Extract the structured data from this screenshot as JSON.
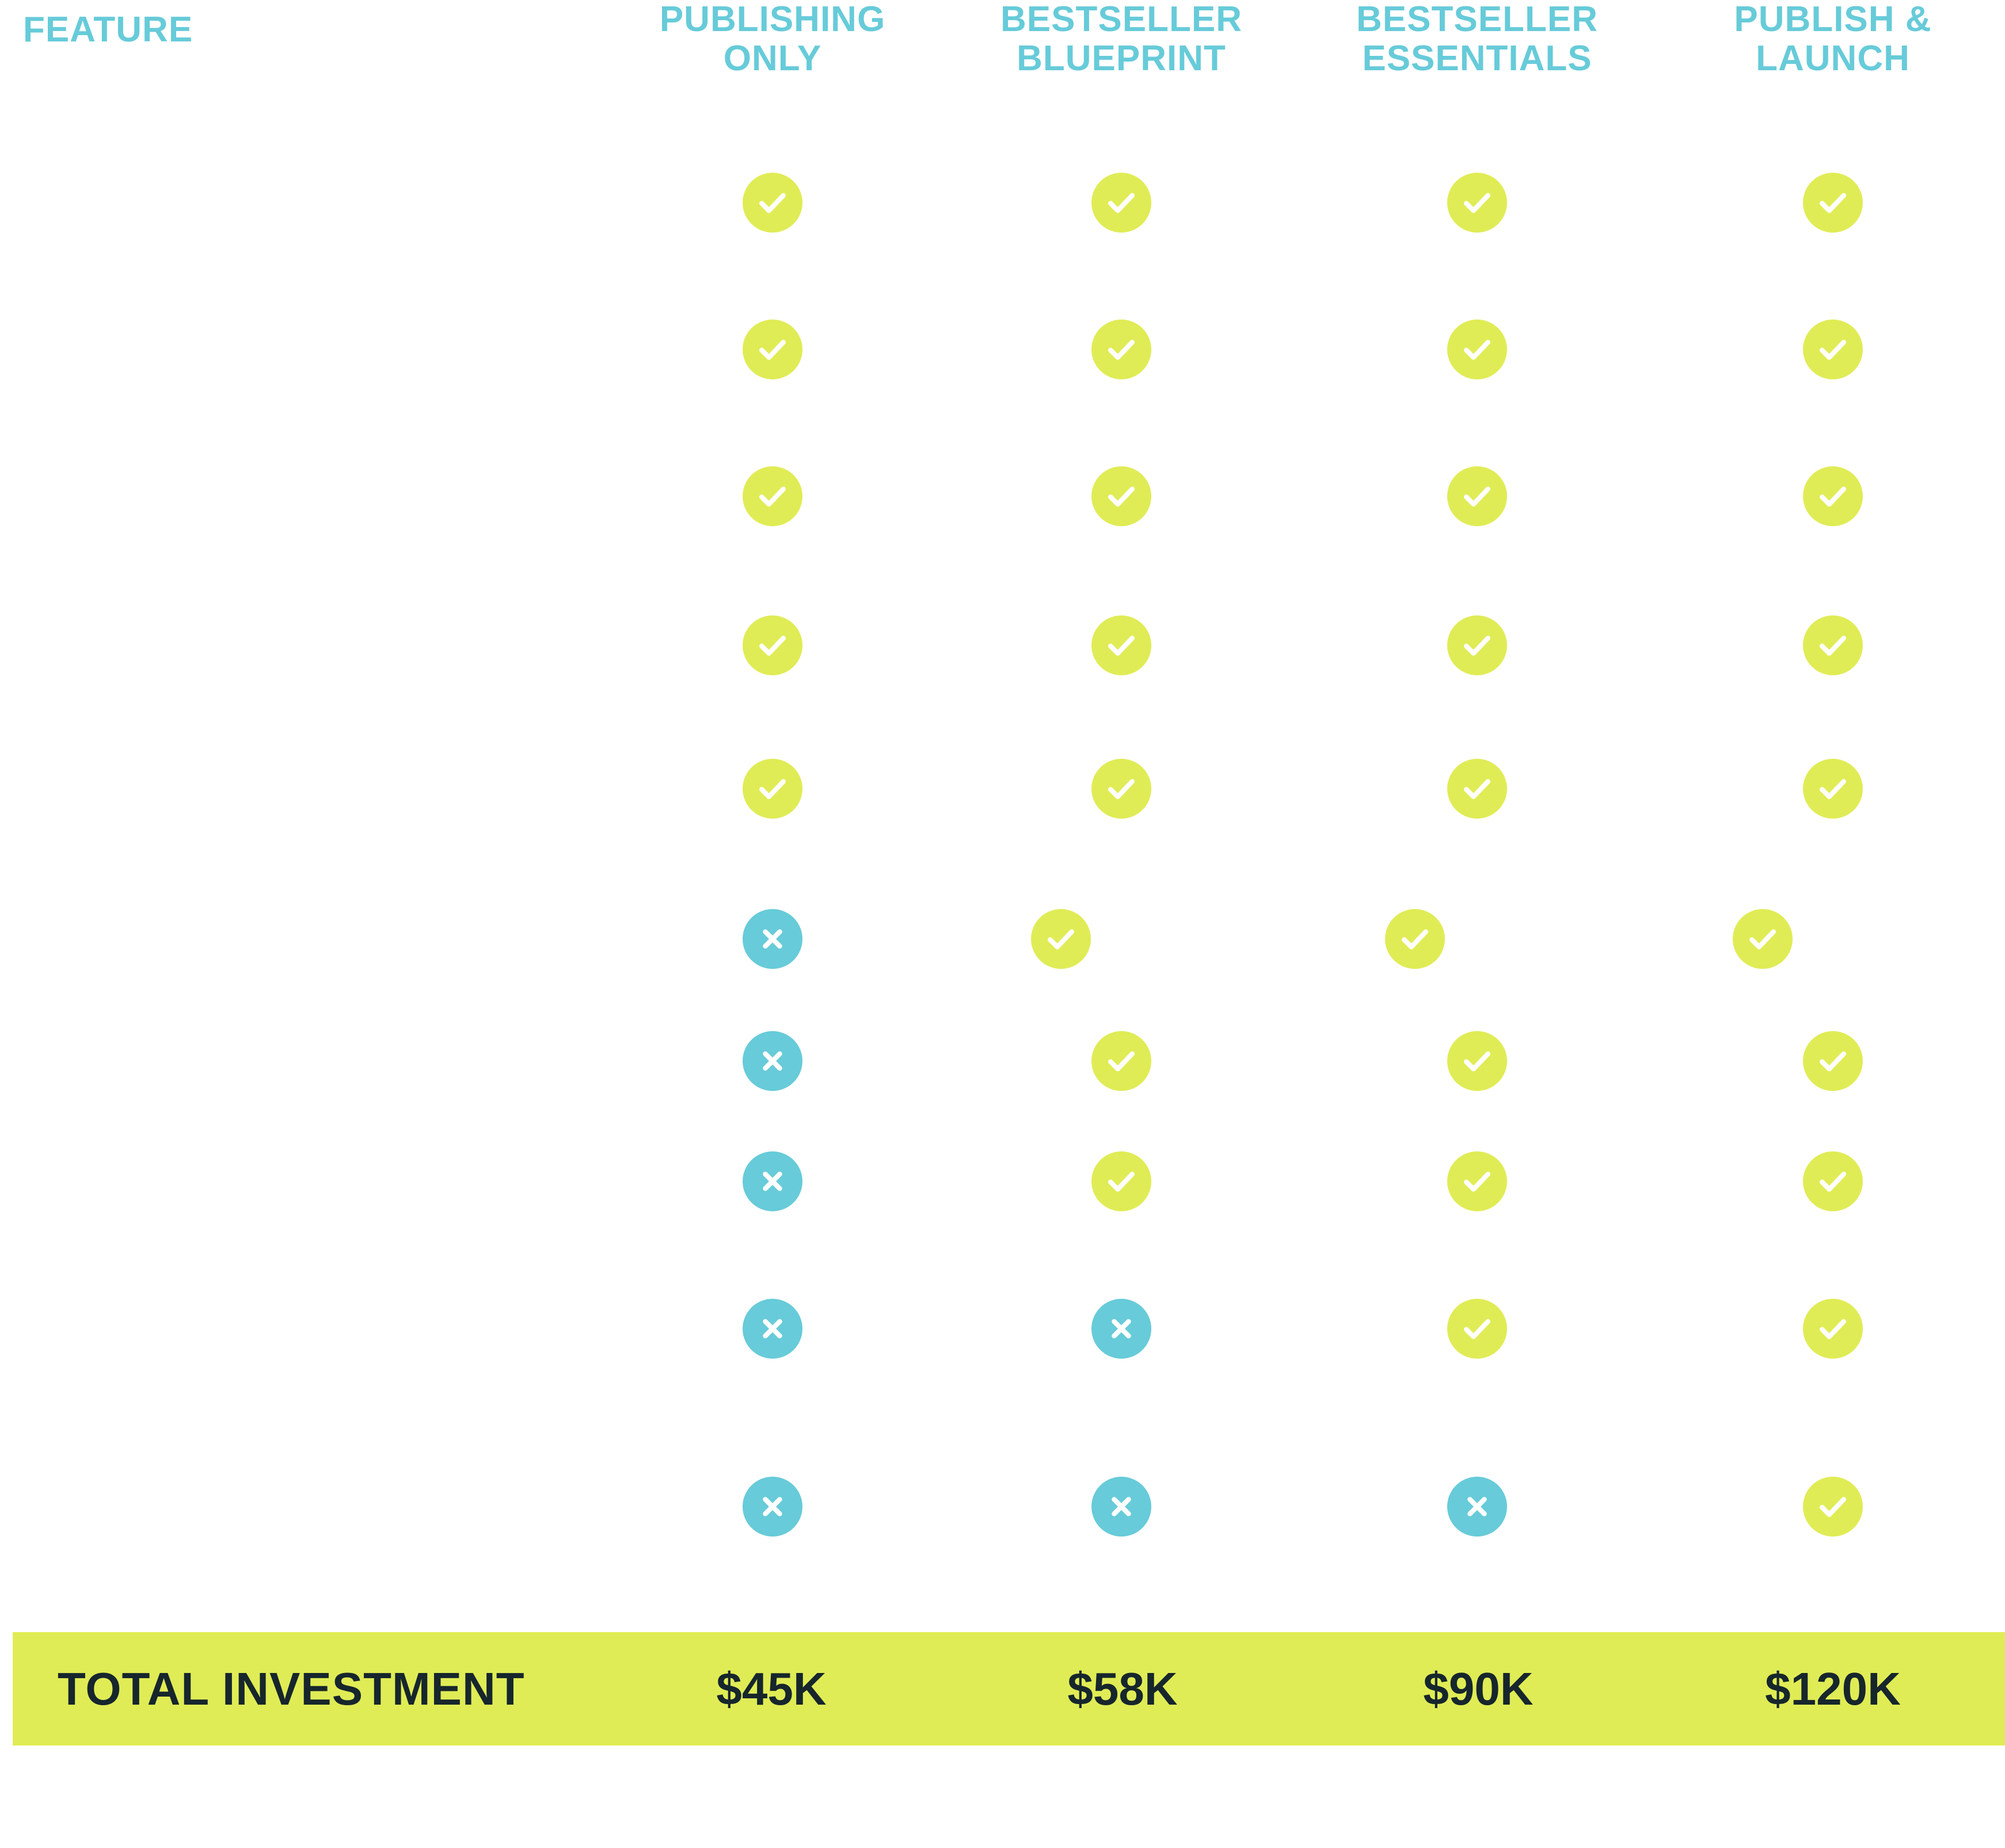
{
  "header": {
    "feature_label": "FEATURE",
    "plans": [
      {
        "line1": "PUBLISHING",
        "line2": "ONLY"
      },
      {
        "line1": "BESTSELLER",
        "line2": "BLUEPRINT"
      },
      {
        "line1": "BESTSELLER",
        "line2": "ESSENTIALS"
      },
      {
        "line1": "PUBLISH &",
        "line2": "LAUNCH"
      }
    ]
  },
  "rows": [
    [
      "check",
      "check",
      "check",
      "check"
    ],
    [
      "check",
      "check",
      "check",
      "check"
    ],
    [
      "check",
      "check",
      "check",
      "check"
    ],
    [
      "check",
      "check",
      "check",
      "check"
    ],
    [
      "check",
      "check",
      "check",
      "check"
    ],
    [
      "cross",
      "check",
      "check",
      "check"
    ],
    [
      "cross",
      "check",
      "check",
      "check"
    ],
    [
      "cross",
      "check",
      "check",
      "check"
    ],
    [
      "cross",
      "cross",
      "check",
      "check"
    ],
    [
      "cross",
      "cross",
      "cross",
      "check"
    ]
  ],
  "total": {
    "label": "TOTAL INVESTMENT",
    "prices": [
      "$45K",
      "$58K",
      "$90K",
      "$120K"
    ]
  },
  "colors": {
    "accent_teal": "#67cbd9",
    "accent_lime": "#e0ec55",
    "text_dark": "#16262c"
  },
  "icons": {
    "check": "check-icon",
    "cross": "close-icon"
  }
}
